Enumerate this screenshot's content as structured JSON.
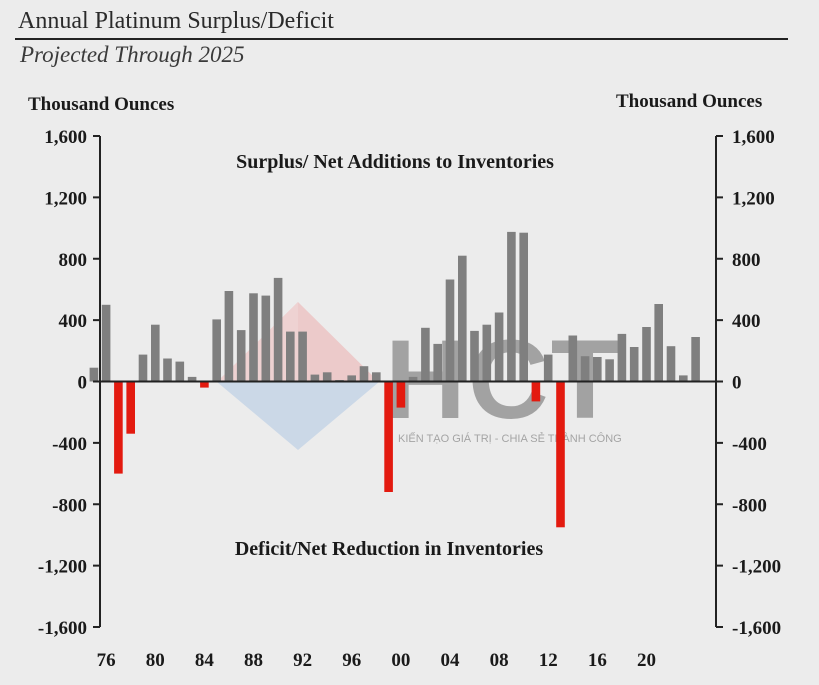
{
  "chart_data": {
    "type": "bar",
    "title": "Annual Platinum Surplus/Deficit",
    "subtitle": "Projected Through 2025",
    "ylabel_left": "Thousand Ounces",
    "ylabel_right": "Thousand Ounces",
    "annotations": {
      "surplus": "Surplus/ Net Additions to Inventories",
      "deficit": "Deficit/Net Reduction in Inventories"
    },
    "ylim": [
      -1600,
      1600
    ],
    "yticks": [
      1600,
      1200,
      800,
      400,
      0,
      -400,
      -800,
      -1200,
      -1600
    ],
    "ytick_labels": [
      "1,600",
      "1,200",
      "800",
      "400",
      "0",
      "-400",
      "-800",
      "-1,200",
      "-1,600"
    ],
    "xtick_labels": [
      "76",
      "80",
      "84",
      "88",
      "92",
      "96",
      "00",
      "04",
      "08",
      "12",
      "16",
      "20"
    ],
    "xtick_years": [
      1976,
      1980,
      1984,
      1988,
      1992,
      1996,
      2000,
      2004,
      2008,
      2012,
      2016,
      2020
    ],
    "colors": {
      "surplus": "#7f7f7f",
      "deficit": "#e31a0f"
    },
    "years": [
      1975,
      1976,
      1977,
      1978,
      1979,
      1980,
      1981,
      1982,
      1983,
      1984,
      1985,
      1986,
      1987,
      1988,
      1989,
      1990,
      1991,
      1992,
      1993,
      1994,
      1995,
      1996,
      1997,
      1998,
      1999,
      2000,
      2001,
      2002,
      2003,
      2004,
      2005,
      2006,
      2007,
      2008,
      2009,
      2010,
      2011,
      2012,
      2013,
      2014,
      2015,
      2016,
      2017,
      2018,
      2019,
      2020,
      2021,
      2022,
      2023,
      2024,
      2025
    ],
    "values": [
      90,
      500,
      -600,
      -340,
      175,
      370,
      150,
      130,
      30,
      -40,
      405,
      590,
      335,
      575,
      560,
      675,
      325,
      325,
      45,
      60,
      10,
      40,
      100,
      60,
      -720,
      -170,
      30,
      350,
      245,
      665,
      820,
      330,
      370,
      450,
      975,
      970,
      -130,
      175,
      -950,
      300,
      165,
      160,
      145,
      310,
      225,
      355,
      505,
      230,
      40,
      290,
      0
    ]
  },
  "watermark": {
    "text": "HCT",
    "tagline": "KIẾN TẠO GIÁ TRỊ - CHIA SẺ THÀNH CÔNG"
  }
}
